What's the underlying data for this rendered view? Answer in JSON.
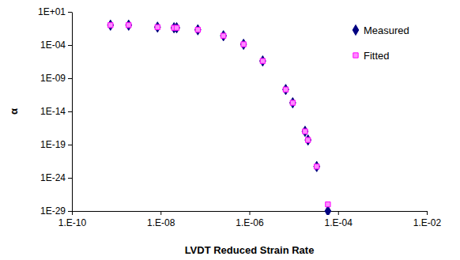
{
  "chart_data": {
    "type": "scatter",
    "x_label": "LVDT Reduced Strain Rate",
    "y_label": "α",
    "log": true,
    "grid": false,
    "legend": "top-right",
    "xlim": [
      1e-10,
      0.01
    ],
    "xticks": [
      {
        "value": 1e-10,
        "label": "1.E-10"
      },
      {
        "value": 1e-08,
        "label": "1.E-08"
      },
      {
        "value": 1e-06,
        "label": "1.E-06"
      },
      {
        "value": 0.0001,
        "label": "1.E-04"
      },
      {
        "value": 0.01,
        "label": "1.E-02"
      }
    ],
    "ylim": [
      1e-29,
      10
    ],
    "yticks": [
      {
        "value": 10,
        "label": "1E+01"
      },
      {
        "value": 0.0001,
        "label": "1E-04"
      },
      {
        "value": 1e-09,
        "label": "1E-09"
      },
      {
        "value": 1e-14,
        "label": "1E-14"
      },
      {
        "value": 1e-19,
        "label": "1E-19"
      },
      {
        "value": 1e-24,
        "label": "1E-24"
      },
      {
        "value": 1e-29,
        "label": "1E-29"
      }
    ],
    "series": [
      {
        "name": "Measured",
        "color": "#000080",
        "marker": "diamond",
        "x": [
          7.4e-10,
          1.9e-09,
          8.5e-09,
          2e-08,
          2.3e-08,
          6.9e-08,
          2.6e-07,
          7.4e-07,
          2e-06,
          6.6e-06,
          9.5e-06,
          1.8e-05,
          2.1e-05,
          3.3e-05,
          5.9e-05
        ],
        "values": [
          0.1,
          0.1,
          0.05,
          0.04,
          0.04,
          0.02,
          0.0025,
          0.00013,
          4e-07,
          2e-11,
          2e-13,
          1e-17,
          5e-19,
          5e-23,
          1e-29
        ]
      },
      {
        "name": "Fitted",
        "color": "#ff00ff",
        "marker": "square",
        "x": [
          7.4e-10,
          1.9e-09,
          8.5e-09,
          2e-08,
          2.3e-08,
          6.9e-08,
          2.6e-07,
          7.4e-07,
          2e-06,
          6.6e-06,
          9.5e-06,
          1.8e-05,
          2.1e-05,
          3.3e-05,
          5.9e-05
        ],
        "values": [
          0.1,
          0.1,
          0.05,
          0.04,
          0.04,
          0.02,
          0.0025,
          0.00013,
          4e-07,
          2e-11,
          2e-13,
          1e-17,
          5e-19,
          5e-23,
          1e-28
        ]
      }
    ]
  }
}
